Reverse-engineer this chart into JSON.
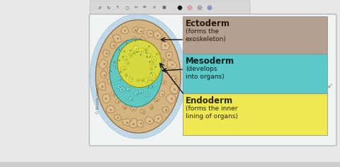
{
  "bg_color": "#e8e8e8",
  "panel_bg": "#ddeaf0",
  "label_boxes": [
    {
      "title": "Ectoderm",
      "subtitle": "(forms the\nexoskeleton)",
      "box_color": "#b5a090",
      "text_color": "#2a1a0a"
    },
    {
      "title": "Mesoderm",
      "subtitle": "(develops\ninto organs)",
      "box_color": "#5cc8c8",
      "text_color": "#0a2020"
    },
    {
      "title": "Endoderm",
      "subtitle": "(forms the inner\nlining of organs)",
      "box_color": "#f0e850",
      "text_color": "#2a2a00"
    }
  ],
  "ectoderm_fill": "#d4b480",
  "ectoderm_cell_fill": "#ddc090",
  "ectoderm_border": "#8a6030",
  "mesoderm_fill": "#60c8c0",
  "mesoderm_cell_fill": "#80d8d0",
  "mesoderm_border": "#208080",
  "endoderm_fill": "#d8d840",
  "endoderm_cell_fill": "#e8e850",
  "endoderm_border": "#888800",
  "arrow_color": "#111111",
  "watermark": "© Buzzle.com",
  "toolbar_bg": "#d8d8d8",
  "toolbar_icons_color": "#555555"
}
